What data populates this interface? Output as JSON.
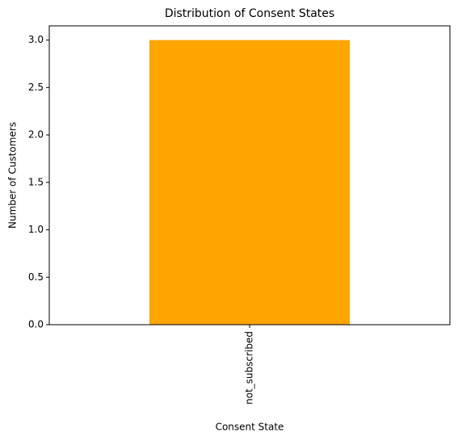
{
  "chart_data": {
    "type": "bar",
    "title": "Distribution of Consent States",
    "x_label": "Consent State",
    "y_label": "Number of Customers",
    "categories": [
      "not_subscribed"
    ],
    "values": [
      3
    ],
    "color": "#ffa500",
    "ylim": [
      0,
      3.15
    ],
    "yticks": [
      {
        "value": 0,
        "label": "0.0"
      },
      {
        "value": 0.5,
        "label": "0.5"
      },
      {
        "value": 1,
        "label": "1.0"
      },
      {
        "value": 1.5,
        "label": "1.5"
      },
      {
        "value": 2,
        "label": "2.0"
      },
      {
        "value": 2.5,
        "label": "2.5"
      },
      {
        "value": 3,
        "label": "3.0"
      }
    ],
    "grid": false
  }
}
